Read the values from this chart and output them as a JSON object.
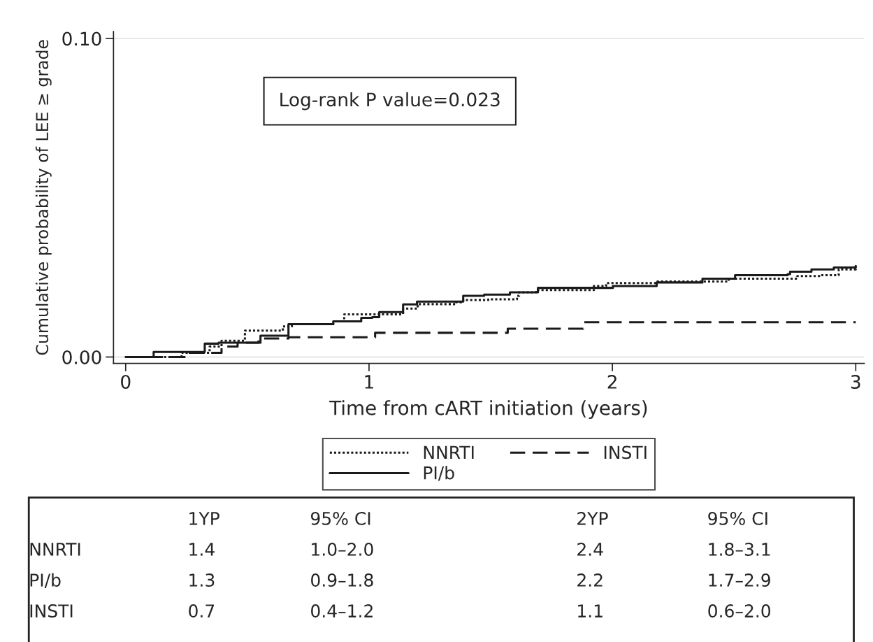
{
  "chart_data": {
    "type": "step",
    "xlabel": "Time from cART initiation (years)",
    "ylabel": "Cumulative probability of LEE ≥ grade",
    "xlim": [
      -0.05,
      3.035
    ],
    "ylim": [
      -0.002,
      0.1022
    ],
    "xticks": [
      0,
      1,
      2,
      3
    ],
    "yticks": [
      {
        "value": 0,
        "label": "0.00"
      },
      {
        "value": 0.1,
        "label": "0.10"
      }
    ],
    "grid": "y",
    "legend": "bottom",
    "series": [
      {
        "name": "NNRTI",
        "color": "#1a1a1a",
        "line_style": "dotted",
        "x": [
          0,
          0.135,
          0.23,
          0.345,
          0.394,
          0.49,
          0.646,
          0.683,
          0.853,
          0.898,
          1.042,
          1.14,
          1.2,
          1.358,
          1.387,
          1.49,
          1.608,
          1.617,
          1.686,
          1.904,
          1.924,
          1.974,
          2.125,
          2.182,
          2.478,
          2.76,
          2.861,
          2.93,
          3.0
        ],
        "values": [
          0,
          0,
          0.0013,
          0.0033,
          0.0051,
          0.0083,
          0.0096,
          0.0103,
          0.0112,
          0.0134,
          0.0134,
          0.0152,
          0.0166,
          0.0172,
          0.0179,
          0.0181,
          0.0192,
          0.0203,
          0.021,
          0.021,
          0.0223,
          0.0232,
          0.0232,
          0.0237,
          0.0246,
          0.0254,
          0.0257,
          0.0275,
          0.0286
        ]
      },
      {
        "name": "PI/b",
        "color": "#1a1a1a",
        "line_style": "solid",
        "x": [
          0,
          0.115,
          0.325,
          0.382,
          0.554,
          0.669,
          0.804,
          0.853,
          0.948,
          0.968,
          1.013,
          1.042,
          1.12,
          1.14,
          1.197,
          1.358,
          1.387,
          1.473,
          1.579,
          1.694,
          1.915,
          2.002,
          2.182,
          2.37,
          2.504,
          2.72,
          2.73,
          2.818,
          2.91,
          3.0
        ],
        "values": [
          0,
          0.0016,
          0.0042,
          0.0045,
          0.0067,
          0.0103,
          0.0103,
          0.0112,
          0.0112,
          0.0123,
          0.0125,
          0.0141,
          0.0141,
          0.0165,
          0.0174,
          0.0174,
          0.0192,
          0.0196,
          0.0203,
          0.0217,
          0.0217,
          0.0223,
          0.0234,
          0.0246,
          0.0257,
          0.026,
          0.0268,
          0.0275,
          0.0281,
          0.0286
        ]
      },
      {
        "name": "INSTI",
        "color": "#1a1a1a",
        "line_style": "dashed",
        "x": [
          0,
          0.181,
          0.258,
          0.394,
          0.46,
          0.546,
          0.669,
          1.005,
          1.025,
          1.541,
          1.57,
          1.873,
          1.88,
          3.0
        ],
        "values": [
          0,
          0,
          0.0013,
          0.0033,
          0.0045,
          0.0058,
          0.0062,
          0.0062,
          0.0076,
          0.0076,
          0.0089,
          0.0089,
          0.0109,
          0.0109
        ]
      }
    ],
    "annotations": [
      "Log-rank P value=0.023",
      "1YP",
      "95% CI",
      "2YP",
      "95% CI",
      "NNRTI",
      "1.4",
      "1.0–2.0",
      "2.4",
      "1.8–3.1",
      "PI/b",
      "1.3",
      "0.9–1.8",
      "2.2",
      "1.7–2.9",
      "INSTI",
      "0.7",
      "0.4–1.2",
      "1.1",
      "0.6–2.0"
    ]
  }
}
